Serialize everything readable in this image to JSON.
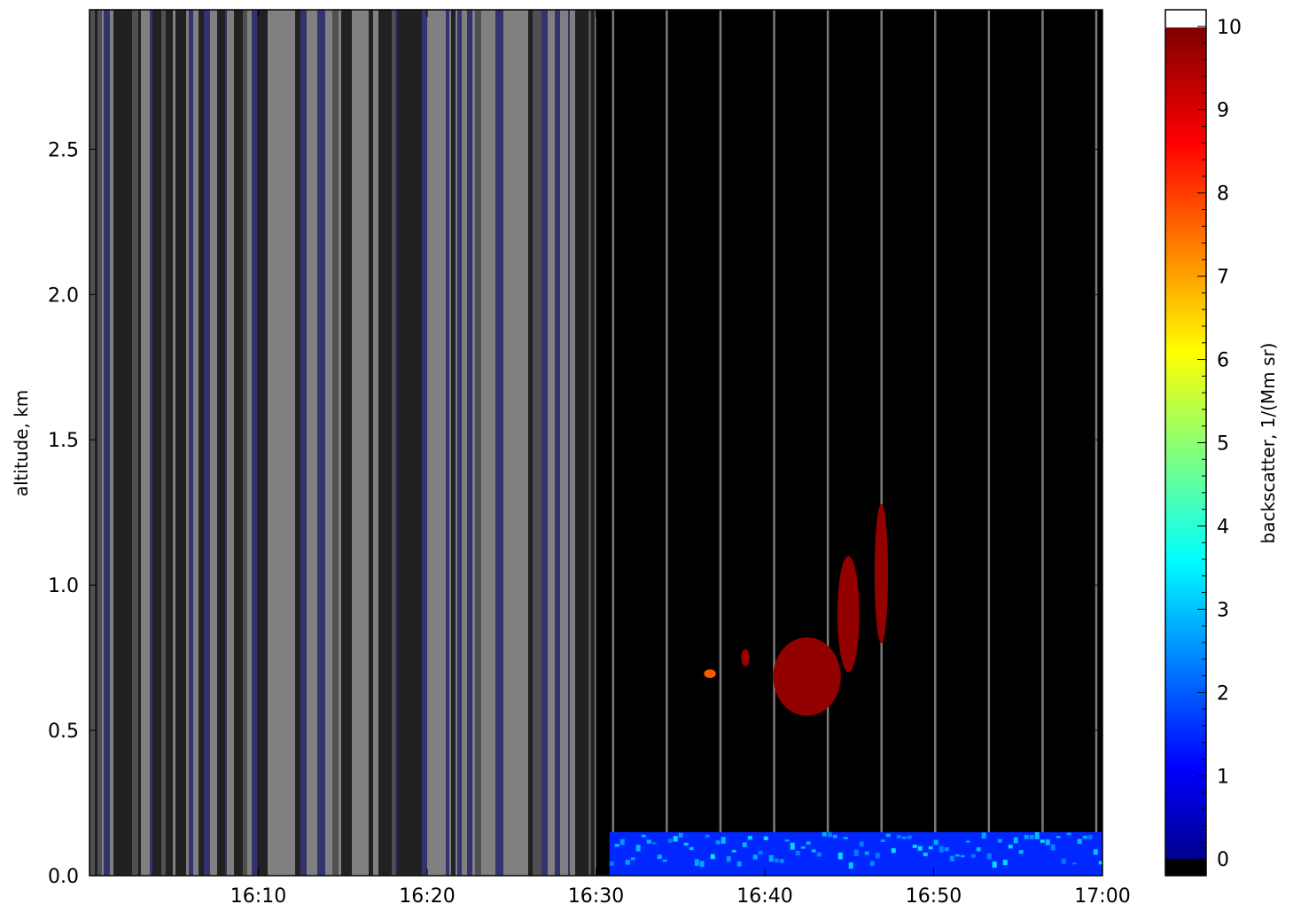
{
  "chart_data": {
    "type": "heatmap",
    "title": "",
    "xlabel": "",
    "ylabel": "altitude, km",
    "x_ticks": [
      "16:10",
      "16:20",
      "16:30",
      "16:40",
      "16:50",
      "17:00"
    ],
    "x_tick_minutes": [
      10,
      20,
      30,
      40,
      50,
      60
    ],
    "xlim_minutes": [
      0,
      60
    ],
    "xlim": [
      "16:00",
      "17:00"
    ],
    "y_ticks": [
      "0.0",
      "0.5",
      "1.0",
      "1.5",
      "2.0",
      "2.5"
    ],
    "y_tick_values": [
      0.0,
      0.5,
      1.0,
      1.5,
      2.0,
      2.5
    ],
    "ylim": [
      0.0,
      2.98
    ],
    "colorbar": {
      "label": "backscatter, 1/(Mm sr)",
      "ticks": [
        "0",
        "1",
        "2",
        "3",
        "4",
        "5",
        "6",
        "7",
        "8",
        "9",
        "10"
      ],
      "tick_values": [
        0,
        1,
        2,
        3,
        4,
        5,
        6,
        7,
        8,
        9,
        10
      ],
      "range": [
        -0.2,
        10.2
      ],
      "colormap": "jet",
      "under_color": "#000000",
      "over_color": "#ffffff"
    },
    "regions": [
      {
        "name": "missing",
        "x_minutes": [
          0,
          30
        ],
        "y_km": [
          0,
          2.98
        ],
        "color": "#808080"
      },
      {
        "name": "clear",
        "x_minutes": [
          30,
          60
        ],
        "y_km": [
          0,
          2.98
        ],
        "color": "#000000"
      }
    ],
    "features": [
      {
        "name": "near-surface layer",
        "x_minutes": [
          30.8,
          60
        ],
        "y_km": [
          0.0,
          0.15
        ],
        "value": 1.5
      },
      {
        "name": "cloud",
        "x_minutes": [
          40.5,
          44.5
        ],
        "y_km": [
          0.55,
          0.82
        ],
        "value": 10
      },
      {
        "name": "fall streak",
        "x_minutes": [
          46.5,
          47.3
        ],
        "y_km": [
          0.8,
          1.28
        ],
        "value": 10
      },
      {
        "name": "fall streak",
        "x_minutes": [
          44.3,
          45.6
        ],
        "y_km": [
          0.7,
          1.1
        ],
        "value": 10
      },
      {
        "name": "cloud fragment",
        "x_minutes": [
          38.6,
          39.1
        ],
        "y_km": [
          0.72,
          0.78
        ],
        "value": 10
      },
      {
        "name": "cloud fragment",
        "x_minutes": [
          36.4,
          37.1
        ],
        "y_km": [
          0.68,
          0.71
        ],
        "value": 8
      }
    ]
  }
}
